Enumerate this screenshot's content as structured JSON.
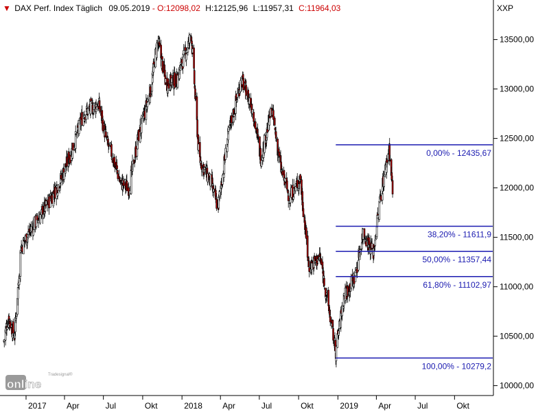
{
  "header": {
    "title": "DAX Perf. Index Täglich",
    "date": "09.05.2019",
    "open": "O:12098,02",
    "high": "H:12125,96",
    "low": "L:11957,31",
    "close": "C:11964,03",
    "exchange": "XXP",
    "separator": " - "
  },
  "branding": {
    "small": "Tradesignal®",
    "big": "online"
  },
  "colors": {
    "header_red": "#cc0000",
    "fib_line": "#1a1ab0",
    "candle_down": "#b00000",
    "candle_up": "#ffffff",
    "axis": "#000000"
  },
  "chart_data": {
    "type": "candlestick",
    "title": "DAX Perf. Index Täglich",
    "ylim": [
      9900,
      13900
    ],
    "y_ticks": [
      "10000,00",
      "10500,00",
      "11000,00",
      "11500,00",
      "12000,00",
      "12500,00",
      "13000,00",
      "13500,00"
    ],
    "y_tick_values": [
      10000,
      10500,
      11000,
      11500,
      12000,
      12500,
      13000,
      13500
    ],
    "x_ticks": [
      "2017",
      "Apr",
      "Jul",
      "Okt",
      "2018",
      "Apr",
      "Jul",
      "Okt",
      "2019",
      "Apr",
      "Jul",
      "Okt"
    ],
    "x_tick_dates": [
      "2017-01-01",
      "2017-04-01",
      "2017-07-01",
      "2017-10-01",
      "2018-01-01",
      "2018-04-01",
      "2018-07-01",
      "2018-10-01",
      "2019-01-01",
      "2019-04-01",
      "2019-07-01",
      "2019-10-01"
    ],
    "xlim": [
      "2016-11-01",
      "2019-12-31"
    ],
    "price_path": [
      {
        "date": "2016-11-10",
        "close": 10450
      },
      {
        "date": "2016-11-20",
        "close": 10700
      },
      {
        "date": "2016-12-05",
        "close": 10500
      },
      {
        "date": "2016-12-20",
        "close": 11400
      },
      {
        "date": "2017-01-15",
        "close": 11600
      },
      {
        "date": "2017-02-15",
        "close": 11800
      },
      {
        "date": "2017-03-20",
        "close": 12050
      },
      {
        "date": "2017-04-20",
        "close": 12400
      },
      {
        "date": "2017-05-15",
        "close": 12750
      },
      {
        "date": "2017-06-20",
        "close": 12850
      },
      {
        "date": "2017-07-10",
        "close": 12450
      },
      {
        "date": "2017-07-20",
        "close": 12350
      },
      {
        "date": "2017-08-10",
        "close": 12050
      },
      {
        "date": "2017-08-30",
        "close": 12000
      },
      {
        "date": "2017-09-20",
        "close": 12500
      },
      {
        "date": "2017-10-20",
        "close": 13000
      },
      {
        "date": "2017-11-05",
        "close": 13500
      },
      {
        "date": "2017-11-25",
        "close": 13050
      },
      {
        "date": "2017-12-20",
        "close": 13100
      },
      {
        "date": "2018-01-23",
        "close": 13550
      },
      {
        "date": "2018-02-10",
        "close": 12300
      },
      {
        "date": "2018-03-10",
        "close": 12050
      },
      {
        "date": "2018-03-26",
        "close": 11800
      },
      {
        "date": "2018-04-20",
        "close": 12550
      },
      {
        "date": "2018-05-20",
        "close": 13100
      },
      {
        "date": "2018-06-15",
        "close": 12800
      },
      {
        "date": "2018-07-05",
        "close": 12300
      },
      {
        "date": "2018-07-30",
        "close": 12800
      },
      {
        "date": "2018-08-20",
        "close": 12200
      },
      {
        "date": "2018-09-10",
        "close": 11900
      },
      {
        "date": "2018-10-05",
        "close": 12100
      },
      {
        "date": "2018-10-25",
        "close": 11200
      },
      {
        "date": "2018-11-20",
        "close": 11300
      },
      {
        "date": "2018-12-10",
        "close": 10800
      },
      {
        "date": "2018-12-27",
        "close": 10350
      },
      {
        "date": "2019-01-15",
        "close": 10900
      },
      {
        "date": "2019-02-10",
        "close": 11100
      },
      {
        "date": "2019-03-01",
        "close": 11550
      },
      {
        "date": "2019-03-25",
        "close": 11350
      },
      {
        "date": "2019-04-10",
        "close": 11900
      },
      {
        "date": "2019-05-01",
        "close": 12400
      },
      {
        "date": "2019-05-09",
        "close": 11964
      }
    ],
    "fibonacci": {
      "start_date": "2018-12-27",
      "end_date": "2019-05-15",
      "levels": [
        {
          "value": 12435.67,
          "label": "0,00% - 12435,67"
        },
        {
          "value": 11611.9,
          "label": "38,20% - 11611,9"
        },
        {
          "value": 11357.44,
          "label": "50,00% - 11357,44"
        },
        {
          "value": 11102.97,
          "label": "61,80% - 11102,97"
        },
        {
          "value": 10279.2,
          "label": "100,00% - 10279,2"
        }
      ]
    }
  }
}
